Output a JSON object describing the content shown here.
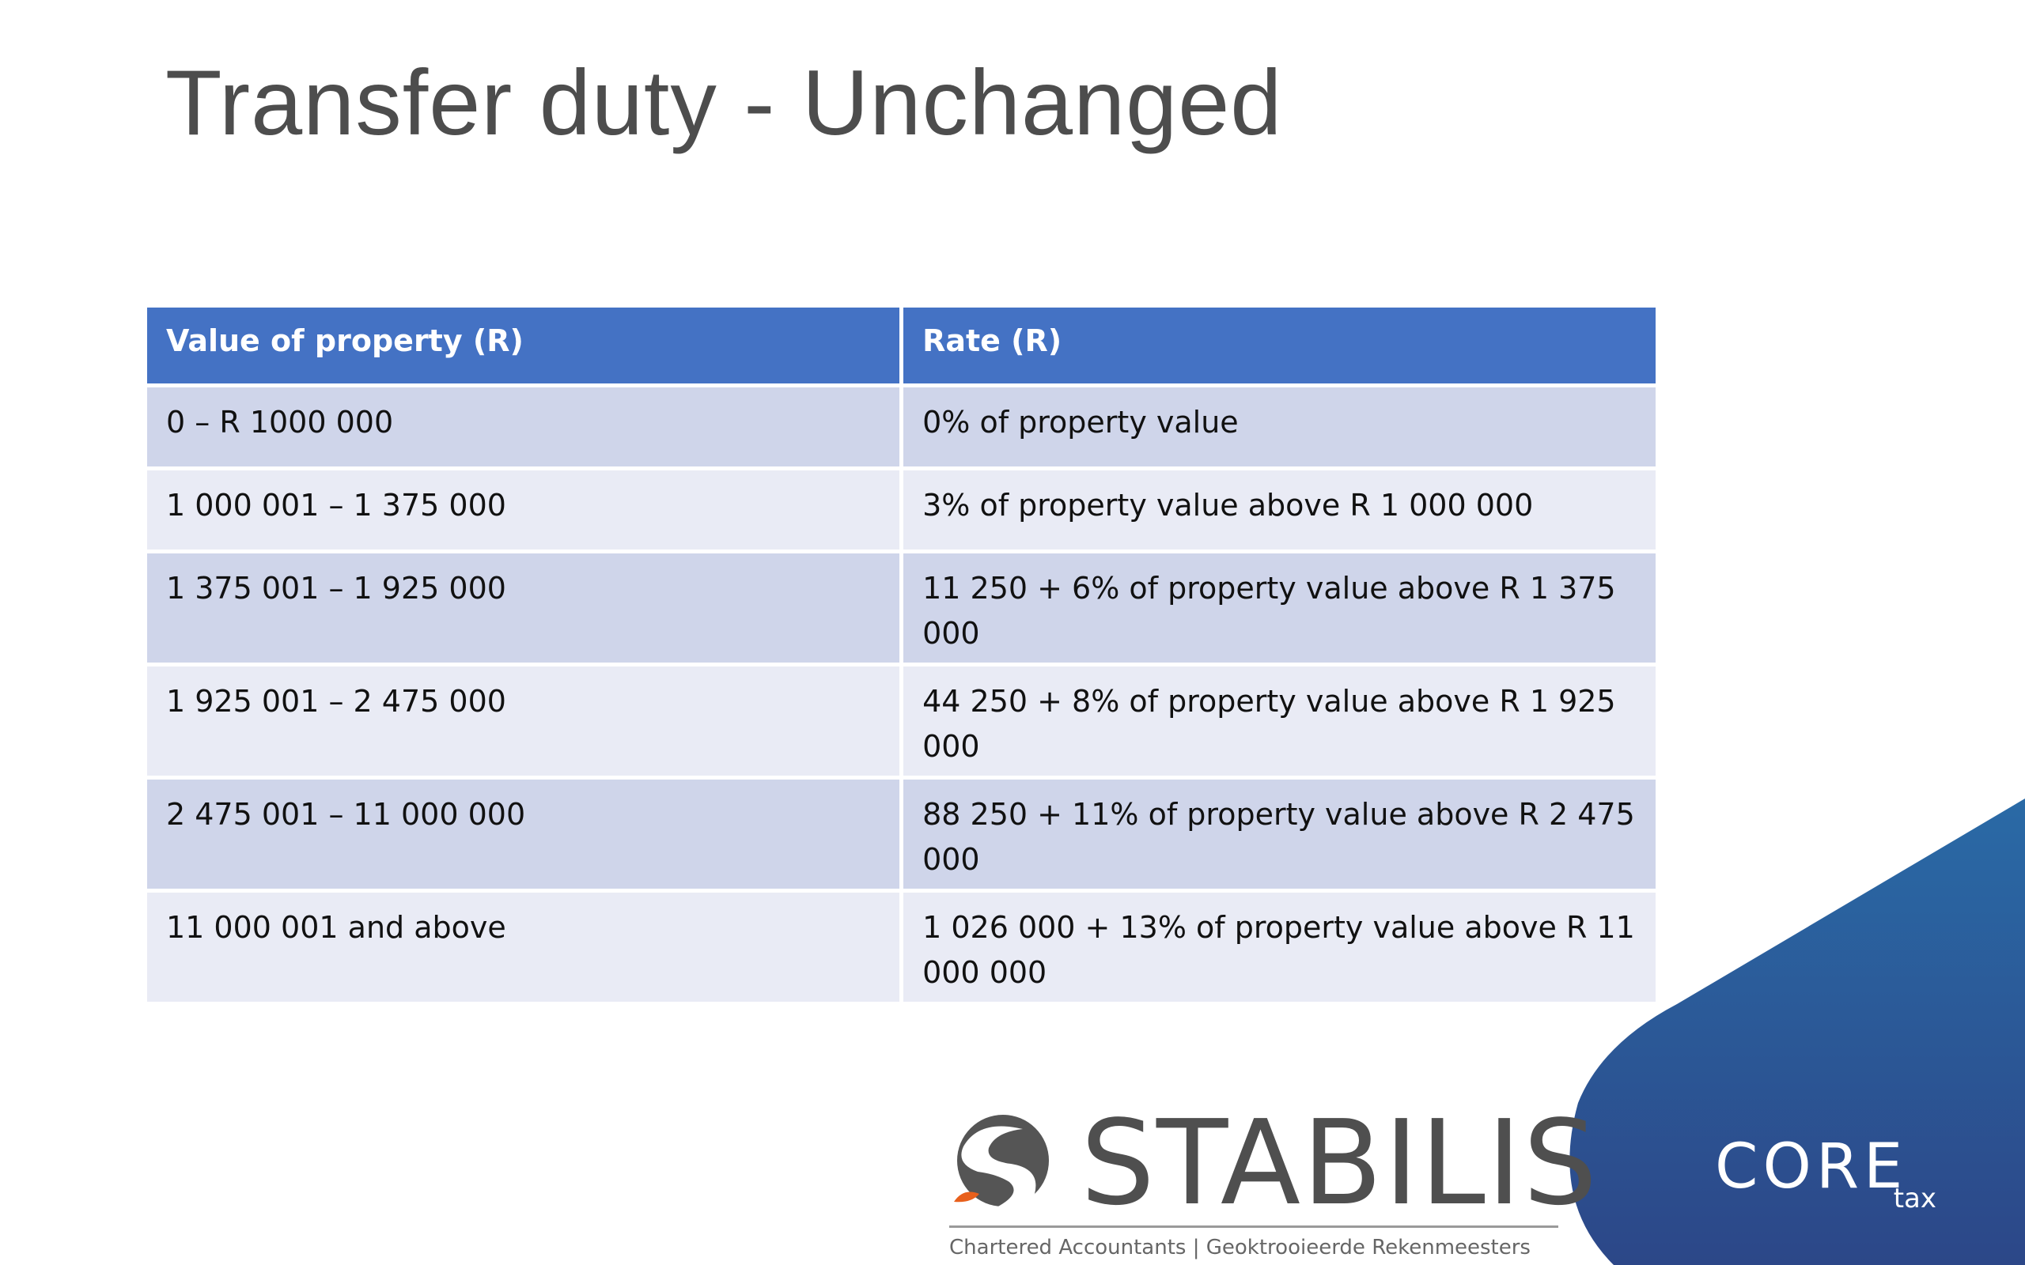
{
  "slide": {
    "title": "Transfer duty - Unchanged"
  },
  "table": {
    "headers": [
      "Value of property (R)",
      "Rate (R)"
    ],
    "rows": [
      [
        "0 – R 1000 000",
        "0% of property value"
      ],
      [
        "1 000 001 –  1 375 000",
        "3% of property value above R 1 000 000"
      ],
      [
        "1 375 001 – 1 925 000",
        "11 250 + 6% of property value above R 1 375 000"
      ],
      [
        "1 925 001 – 2 475 000",
        "44 250 + 8% of property value above R 1 925 000"
      ],
      [
        "2 475 001 – 11 000 000",
        "88 250 + 11% of property value above R 2 475 000"
      ],
      [
        "11 000 001 and above",
        "1 026 000 + 13% of property value above R 11 000 000"
      ]
    ]
  },
  "logos": {
    "stabilis_name": "STABILIS",
    "stabilis_tagline": "Chartered Accountants | Geoktrooieerde Rekenmeesters",
    "core_name": "CORE",
    "core_sub": "tax"
  },
  "colors": {
    "header_blue": "#4472c4",
    "row_odd": "#cfd5ea",
    "row_even": "#e9ebf5",
    "brand_orange": "#e8601c",
    "corner_blue_top": "#2a6aa6",
    "corner_blue_bottom": "#2c4a86"
  }
}
